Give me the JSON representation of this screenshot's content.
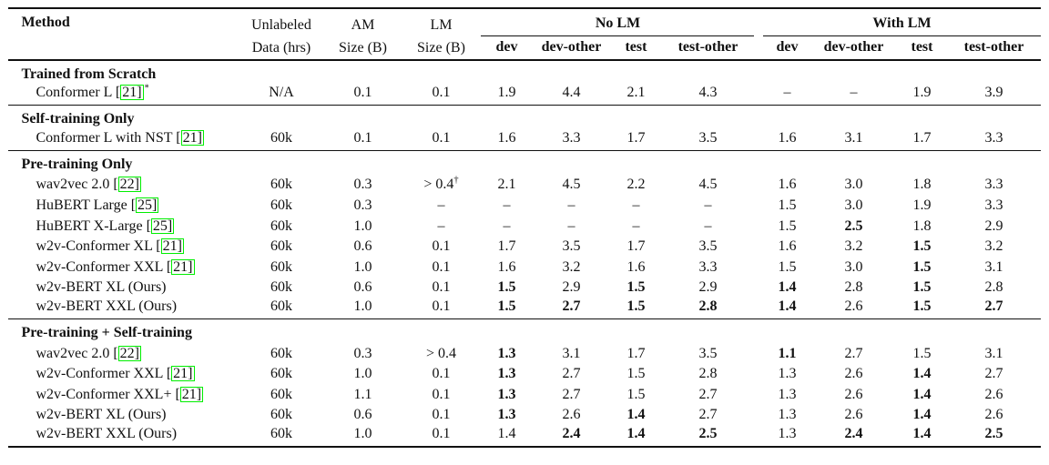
{
  "table": {
    "colors": {
      "cite_border": "#00ee00",
      "text": "#111111",
      "rule": "#111111"
    },
    "header": {
      "method": "Method",
      "unlabeled": [
        "Unlabeled",
        "Data (hrs)"
      ],
      "am": [
        "AM",
        "Size (B)"
      ],
      "lm": [
        "LM",
        "Size (B)"
      ],
      "groups": [
        {
          "label": "No LM"
        },
        {
          "label": "With LM"
        }
      ],
      "subcolumns": [
        "dev",
        "dev-other",
        "test",
        "test-other"
      ]
    },
    "sections": [
      {
        "label": "Trained from Scratch",
        "rows": [
          {
            "method": {
              "text": "Conformer L ",
              "cite": "21",
              "sup": "*"
            },
            "cells": [
              "N/A",
              "0.1",
              "0.1",
              "1.9",
              "4.4",
              "2.1",
              "4.3",
              "–",
              "–",
              "1.9",
              "3.9"
            ],
            "bold": []
          }
        ]
      },
      {
        "label": "Self-training Only",
        "rows": [
          {
            "method": {
              "text": "Conformer L with NST ",
              "cite": "21"
            },
            "cells": [
              "60k",
              "0.1",
              "0.1",
              "1.6",
              "3.3",
              "1.7",
              "3.5",
              "1.6",
              "3.1",
              "1.7",
              "3.3"
            ],
            "bold": []
          }
        ]
      },
      {
        "label": "Pre-training Only",
        "rows": [
          {
            "method": {
              "text": "wav2vec 2.0 ",
              "cite": "22"
            },
            "cells": [
              "60k",
              "0.3",
              "> 0.4†",
              "2.1",
              "4.5",
              "2.2",
              "4.5",
              "1.6",
              "3.0",
              "1.8",
              "3.3"
            ],
            "bold": []
          },
          {
            "method": {
              "text": "HuBERT Large ",
              "cite": "25"
            },
            "cells": [
              "60k",
              "0.3",
              "–",
              "–",
              "–",
              "–",
              "–",
              "1.5",
              "3.0",
              "1.9",
              "3.3"
            ],
            "bold": []
          },
          {
            "method": {
              "text": "HuBERT X-Large ",
              "cite": "25"
            },
            "cells": [
              "60k",
              "1.0",
              "–",
              "–",
              "–",
              "–",
              "–",
              "1.5",
              "2.5",
              "1.8",
              "2.9"
            ],
            "bold": [
              8
            ]
          },
          {
            "method": {
              "text": "w2v-Conformer XL ",
              "cite": "21"
            },
            "cells": [
              "60k",
              "0.6",
              "0.1",
              "1.7",
              "3.5",
              "1.7",
              "3.5",
              "1.6",
              "3.2",
              "1.5",
              "3.2"
            ],
            "bold": [
              9
            ]
          },
          {
            "method": {
              "text": "w2v-Conformer XXL ",
              "cite": "21"
            },
            "cells": [
              "60k",
              "1.0",
              "0.1",
              "1.6",
              "3.2",
              "1.6",
              "3.3",
              "1.5",
              "3.0",
              "1.5",
              "3.1"
            ],
            "bold": [
              9
            ]
          },
          {
            "method": {
              "text": "w2v-BERT XL (Ours)"
            },
            "cells": [
              "60k",
              "0.6",
              "0.1",
              "1.5",
              "2.9",
              "1.5",
              "2.9",
              "1.4",
              "2.8",
              "1.5",
              "2.8"
            ],
            "bold": [
              3,
              5,
              7,
              9
            ]
          },
          {
            "method": {
              "text": "w2v-BERT XXL (Ours)"
            },
            "cells": [
              "60k",
              "1.0",
              "0.1",
              "1.5",
              "2.7",
              "1.5",
              "2.8",
              "1.4",
              "2.6",
              "1.5",
              "2.7"
            ],
            "bold": [
              3,
              4,
              5,
              6,
              7,
              9,
              10
            ]
          }
        ]
      },
      {
        "label": "Pre-training + Self-training",
        "rows": [
          {
            "method": {
              "text": "wav2vec 2.0 ",
              "cite": "22"
            },
            "cells": [
              "60k",
              "0.3",
              "> 0.4",
              "1.3",
              "3.1",
              "1.7",
              "3.5",
              "1.1",
              "2.7",
              "1.5",
              "3.1"
            ],
            "bold": [
              3,
              7
            ]
          },
          {
            "method": {
              "text": "w2v-Conformer XXL ",
              "cite": "21"
            },
            "cells": [
              "60k",
              "1.0",
              "0.1",
              "1.3",
              "2.7",
              "1.5",
              "2.8",
              "1.3",
              "2.6",
              "1.4",
              "2.7"
            ],
            "bold": [
              3,
              9
            ]
          },
          {
            "method": {
              "text": "w2v-Conformer XXL+ ",
              "cite": "21"
            },
            "cells": [
              "60k",
              "1.1",
              "0.1",
              "1.3",
              "2.7",
              "1.5",
              "2.7",
              "1.3",
              "2.6",
              "1.4",
              "2.6"
            ],
            "bold": [
              3,
              9
            ]
          },
          {
            "method": {
              "text": "w2v-BERT XL (Ours)"
            },
            "cells": [
              "60k",
              "0.6",
              "0.1",
              "1.3",
              "2.6",
              "1.4",
              "2.7",
              "1.3",
              "2.6",
              "1.4",
              "2.6"
            ],
            "bold": [
              3,
              5,
              9
            ]
          },
          {
            "method": {
              "text": "w2v-BERT XXL (Ours)"
            },
            "cells": [
              "60k",
              "1.0",
              "0.1",
              "1.4",
              "2.4",
              "1.4",
              "2.5",
              "1.3",
              "2.4",
              "1.4",
              "2.5"
            ],
            "bold": [
              4,
              5,
              6,
              8,
              9,
              10
            ]
          }
        ]
      }
    ]
  }
}
